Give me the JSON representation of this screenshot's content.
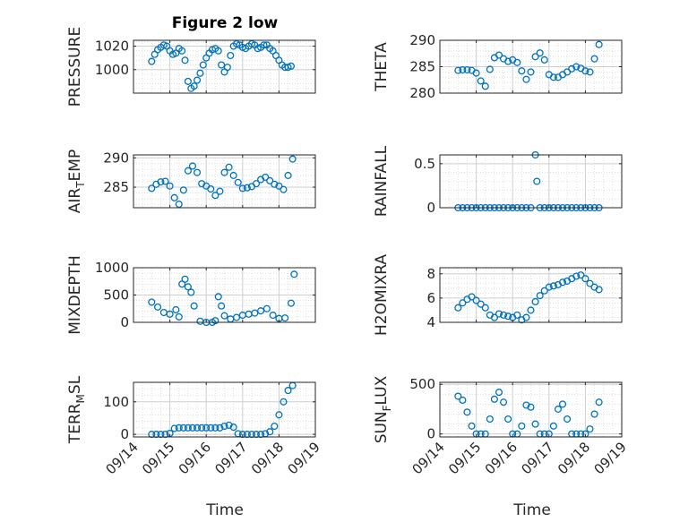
{
  "figure_title": "Figure 2 low",
  "x_label": "Time",
  "x_ticks": [
    "09/14",
    "09/15",
    "09/16",
    "09/17",
    "09/18",
    "09/19"
  ],
  "marker_color": "#0072BD",
  "chart_data": [
    {
      "type": "scatter",
      "ylabel": "PRESSURE",
      "xlim": [
        "09/14",
        "09/19"
      ],
      "ylim": [
        980,
        1025
      ],
      "yticks": [
        1000,
        1020
      ],
      "ytick_labels": [
        "1000",
        "1020"
      ],
      "x": [
        "09/14 12:00",
        "09/14 14:00",
        "09/14 16:00",
        "09/14 18:00",
        "09/14 20:00",
        "09/14 22:00",
        "09/15 00:00",
        "09/15 02:00",
        "09/15 04:00",
        "09/15 06:00",
        "09/15 08:00",
        "09/15 10:00",
        "09/15 12:00",
        "09/15 14:00",
        "09/15 16:00",
        "09/15 18:00",
        "09/15 20:00",
        "09/15 22:00",
        "09/16 00:00",
        "09/16 02:00",
        "09/16 04:00",
        "09/16 06:00",
        "09/16 08:00",
        "09/16 10:00",
        "09/16 12:00",
        "09/16 14:00",
        "09/16 16:00",
        "09/16 18:00",
        "09/16 20:00",
        "09/16 22:00",
        "09/17 00:00",
        "09/17 02:00",
        "09/17 04:00",
        "09/17 06:00",
        "09/17 08:00",
        "09/17 10:00",
        "09/17 12:00",
        "09/17 14:00",
        "09/17 16:00",
        "09/17 18:00",
        "09/17 20:00",
        "09/17 22:00",
        "09/18 00:00",
        "09/18 02:00",
        "09/18 04:00",
        "09/18 06:00",
        "09/18 08:00"
      ],
      "y": [
        1007,
        1013,
        1017,
        1019,
        1021,
        1020,
        1016,
        1013,
        1014,
        1018,
        1016,
        1008,
        990,
        984,
        986,
        991,
        997,
        1004,
        1010,
        1014,
        1017,
        1018,
        1016,
        1004,
        998,
        1002,
        1012,
        1020,
        1022,
        1021,
        1019,
        1018,
        1020,
        1022,
        1021,
        1018,
        1019,
        1021,
        1021,
        1018,
        1016,
        1012,
        1008,
        1004,
        1002,
        1002,
        1003
      ]
    },
    {
      "type": "scatter",
      "ylabel": "THETA",
      "xlim": [
        "09/14",
        "09/19"
      ],
      "ylim": [
        280,
        290
      ],
      "yticks": [
        280,
        285,
        290
      ],
      "ytick_labels": [
        "280",
        "285",
        "290"
      ],
      "x": [
        "09/14 12:00",
        "09/14 15:00",
        "09/14 18:00",
        "09/14 21:00",
        "09/15 00:00",
        "09/15 03:00",
        "09/15 06:00",
        "09/15 09:00",
        "09/15 12:00",
        "09/15 15:00",
        "09/15 18:00",
        "09/15 21:00",
        "09/16 00:00",
        "09/16 03:00",
        "09/16 06:00",
        "09/16 09:00",
        "09/16 12:00",
        "09/16 15:00",
        "09/16 18:00",
        "09/16 21:00",
        "09/17 00:00",
        "09/17 03:00",
        "09/17 06:00",
        "09/17 09:00",
        "09/17 12:00",
        "09/17 15:00",
        "09/17 18:00",
        "09/17 21:00",
        "09/18 00:00",
        "09/18 03:00",
        "09/18 06:00",
        "09/18 09:00"
      ],
      "y": [
        284.3,
        284.4,
        284.4,
        284.3,
        283.8,
        282.3,
        281.3,
        284.5,
        286.7,
        287.2,
        286.5,
        286.0,
        286.3,
        285.8,
        284.2,
        282.6,
        284.0,
        286.9,
        287.6,
        286.3,
        283.5,
        283.0,
        283.0,
        283.5,
        284.0,
        284.6,
        285.0,
        284.7,
        284.2,
        284.0,
        286.5,
        289.2
      ]
    },
    {
      "type": "scatter",
      "ylabel": "AIR_TEMP",
      "xlim": [
        "09/14",
        "09/19"
      ],
      "ylim": [
        281.5,
        290.5
      ],
      "yticks": [
        285,
        290
      ],
      "ytick_labels": [
        "285",
        "290"
      ],
      "x": [
        "09/14 12:00",
        "09/14 15:00",
        "09/14 18:00",
        "09/14 21:00",
        "09/15 00:00",
        "09/15 03:00",
        "09/15 06:00",
        "09/15 09:00",
        "09/15 12:00",
        "09/15 15:00",
        "09/15 18:00",
        "09/15 21:00",
        "09/16 00:00",
        "09/16 03:00",
        "09/16 06:00",
        "09/16 09:00",
        "09/16 12:00",
        "09/16 15:00",
        "09/16 18:00",
        "09/16 21:00",
        "09/17 00:00",
        "09/17 03:00",
        "09/17 06:00",
        "09/17 09:00",
        "09/17 12:00",
        "09/17 15:00",
        "09/17 18:00",
        "09/17 21:00",
        "09/18 00:00",
        "09/18 03:00",
        "09/18 06:00",
        "09/18 09:00"
      ],
      "y": [
        284.8,
        285.5,
        285.9,
        286.0,
        285.2,
        283.2,
        282.1,
        284.5,
        287.8,
        288.6,
        287.5,
        285.6,
        285.2,
        284.7,
        283.6,
        284.3,
        287.5,
        288.4,
        287.0,
        285.8,
        284.8,
        284.9,
        285.1,
        285.6,
        286.3,
        286.7,
        286.1,
        285.5,
        285.2,
        284.6,
        287.0,
        289.8
      ]
    },
    {
      "type": "scatter",
      "ylabel": "RAINFALL",
      "xlim": [
        "09/14",
        "09/19"
      ],
      "ylim": [
        0,
        0.6
      ],
      "yticks": [
        0,
        0.5
      ],
      "ytick_labels": [
        "0",
        "0.5"
      ],
      "x": [
        "09/14 12:00",
        "09/14 15:00",
        "09/14 18:00",
        "09/14 21:00",
        "09/15 00:00",
        "09/15 03:00",
        "09/15 06:00",
        "09/15 09:00",
        "09/15 12:00",
        "09/15 15:00",
        "09/15 18:00",
        "09/15 21:00",
        "09/16 00:00",
        "09/16 03:00",
        "09/16 06:00",
        "09/16 09:00",
        "09/16 12:00",
        "09/16 15:00",
        "09/16 16:00",
        "09/16 18:00",
        "09/16 21:00",
        "09/17 00:00",
        "09/17 03:00",
        "09/17 06:00",
        "09/17 09:00",
        "09/17 12:00",
        "09/17 15:00",
        "09/17 18:00",
        "09/17 21:00",
        "09/18 00:00",
        "09/18 03:00",
        "09/18 06:00",
        "09/18 09:00"
      ],
      "y": [
        0,
        0,
        0,
        0,
        0,
        0,
        0,
        0,
        0,
        0,
        0,
        0,
        0,
        0,
        0,
        0,
        0,
        0.6,
        0.3,
        0,
        0,
        0,
        0,
        0,
        0,
        0,
        0,
        0,
        0,
        0,
        0,
        0,
        0
      ]
    },
    {
      "type": "scatter",
      "ylabel": "MIXDEPTH",
      "xlim": [
        "09/14",
        "09/19"
      ],
      "ylim": [
        0,
        1000
      ],
      "yticks": [
        0,
        500,
        1000
      ],
      "ytick_labels": [
        "0",
        "500",
        "1000"
      ],
      "x": [
        "09/14 12:00",
        "09/14 16:00",
        "09/14 20:00",
        "09/15 00:00",
        "09/15 04:00",
        "09/15 06:00",
        "09/15 08:00",
        "09/15 10:00",
        "09/15 12:00",
        "09/15 14:00",
        "09/15 16:00",
        "09/15 20:00",
        "09/16 00:00",
        "09/16 04:00",
        "09/16 06:00",
        "09/16 08:00",
        "09/16 10:00",
        "09/16 12:00",
        "09/16 16:00",
        "09/16 20:00",
        "09/17 00:00",
        "09/17 04:00",
        "09/17 08:00",
        "09/17 12:00",
        "09/17 16:00",
        "09/17 20:00",
        "09/18 00:00",
        "09/18 04:00",
        "09/18 08:00",
        "09/18 10:00"
      ],
      "y": [
        370,
        280,
        180,
        150,
        230,
        100,
        700,
        790,
        650,
        550,
        300,
        20,
        0,
        0,
        30,
        470,
        300,
        120,
        60,
        90,
        130,
        150,
        170,
        210,
        250,
        130,
        70,
        80,
        350,
        880
      ]
    },
    {
      "type": "scatter",
      "ylabel": "H2OMIXRA",
      "xlim": [
        "09/14",
        "09/19"
      ],
      "ylim": [
        4,
        8.5
      ],
      "yticks": [
        4,
        6,
        8
      ],
      "ytick_labels": [
        "4",
        "6",
        "8"
      ],
      "x": [
        "09/14 12:00",
        "09/14 15:00",
        "09/14 18:00",
        "09/14 21:00",
        "09/15 00:00",
        "09/15 03:00",
        "09/15 06:00",
        "09/15 09:00",
        "09/15 12:00",
        "09/15 15:00",
        "09/15 18:00",
        "09/15 21:00",
        "09/16 00:00",
        "09/16 03:00",
        "09/16 06:00",
        "09/16 09:00",
        "09/16 12:00",
        "09/16 15:00",
        "09/16 18:00",
        "09/16 21:00",
        "09/17 00:00",
        "09/17 03:00",
        "09/17 06:00",
        "09/17 09:00",
        "09/17 12:00",
        "09/17 15:00",
        "09/17 18:00",
        "09/17 21:00",
        "09/18 00:00",
        "09/18 03:00",
        "09/18 06:00",
        "09/18 09:00"
      ],
      "y": [
        5.2,
        5.6,
        5.9,
        6.1,
        5.8,
        5.5,
        5.2,
        4.6,
        4.4,
        4.7,
        4.6,
        4.5,
        4.4,
        4.6,
        4.2,
        4.4,
        5.0,
        5.7,
        6.2,
        6.6,
        6.9,
        7.0,
        7.1,
        7.3,
        7.4,
        7.6,
        7.8,
        7.9,
        7.6,
        7.2,
        6.9,
        6.7
      ]
    },
    {
      "type": "scatter",
      "ylabel": "TERR_MSL",
      "xlim": [
        "09/14",
        "09/19"
      ],
      "ylim": [
        -8,
        160
      ],
      "yticks": [
        0,
        100
      ],
      "ytick_labels": [
        "0",
        "100"
      ],
      "x": [
        "09/14 12:00",
        "09/14 15:00",
        "09/14 18:00",
        "09/14 21:00",
        "09/15 00:00",
        "09/15 03:00",
        "09/15 06:00",
        "09/15 09:00",
        "09/15 12:00",
        "09/15 15:00",
        "09/15 18:00",
        "09/15 21:00",
        "09/16 00:00",
        "09/16 03:00",
        "09/16 06:00",
        "09/16 09:00",
        "09/16 12:00",
        "09/16 15:00",
        "09/16 18:00",
        "09/16 21:00",
        "09/17 00:00",
        "09/17 03:00",
        "09/17 06:00",
        "09/17 09:00",
        "09/17 12:00",
        "09/17 15:00",
        "09/17 18:00",
        "09/17 21:00",
        "09/18 00:00",
        "09/18 03:00",
        "09/18 06:00",
        "09/18 09:00"
      ],
      "y": [
        0,
        0,
        0,
        0,
        3,
        18,
        20,
        20,
        20,
        20,
        20,
        20,
        20,
        20,
        20,
        20,
        25,
        28,
        22,
        2,
        0,
        0,
        0,
        0,
        0,
        2,
        8,
        25,
        60,
        100,
        135,
        150
      ]
    },
    {
      "type": "scatter",
      "ylabel": "SUN_FLUX",
      "xlim": [
        "09/14",
        "09/19"
      ],
      "ylim": [
        -30,
        520
      ],
      "yticks": [
        0,
        500
      ],
      "ytick_labels": [
        "0",
        "500"
      ],
      "x": [
        "09/14 12:00",
        "09/14 15:00",
        "09/14 18:00",
        "09/14 21:00",
        "09/15 00:00",
        "09/15 03:00",
        "09/15 06:00",
        "09/15 09:00",
        "09/15 12:00",
        "09/15 15:00",
        "09/15 18:00",
        "09/15 21:00",
        "09/16 00:00",
        "09/16 03:00",
        "09/16 06:00",
        "09/16 09:00",
        "09/16 12:00",
        "09/16 15:00",
        "09/16 18:00",
        "09/16 21:00",
        "09/17 00:00",
        "09/17 03:00",
        "09/17 06:00",
        "09/17 09:00",
        "09/17 12:00",
        "09/17 15:00",
        "09/17 18:00",
        "09/17 21:00",
        "09/18 00:00",
        "09/18 03:00",
        "09/18 06:00",
        "09/18 09:00"
      ],
      "y": [
        380,
        340,
        220,
        80,
        0,
        0,
        0,
        150,
        350,
        420,
        320,
        150,
        0,
        0,
        80,
        290,
        270,
        100,
        0,
        0,
        0,
        80,
        250,
        300,
        150,
        0,
        0,
        0,
        0,
        50,
        200,
        320
      ]
    }
  ]
}
